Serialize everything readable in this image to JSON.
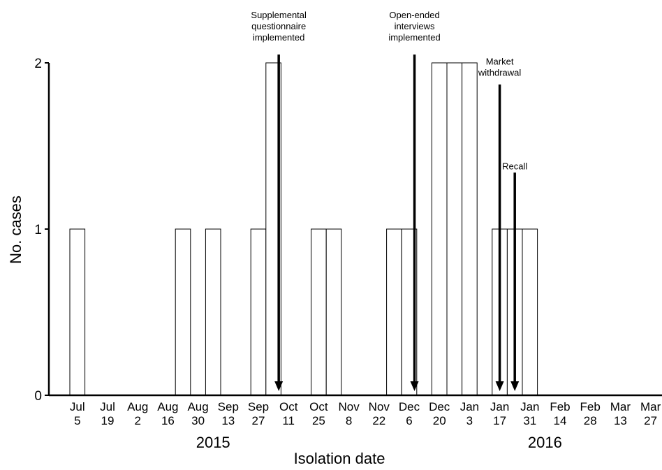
{
  "chart_data": {
    "type": "bar",
    "ylabel": "No. cases",
    "xlabel": "Isolation date",
    "ylim": [
      0,
      2
    ],
    "yticks": [
      0,
      1,
      2
    ],
    "x_ticks": [
      {
        "line1": "Jul",
        "line2": "5"
      },
      {
        "line1": "Jul",
        "line2": "19"
      },
      {
        "line1": "Aug",
        "line2": "2"
      },
      {
        "line1": "Aug",
        "line2": "16"
      },
      {
        "line1": "Aug",
        "line2": "30"
      },
      {
        "line1": "Sep",
        "line2": "13"
      },
      {
        "line1": "Sep",
        "line2": "27"
      },
      {
        "line1": "Oct",
        "line2": "11"
      },
      {
        "line1": "Oct",
        "line2": "25"
      },
      {
        "line1": "Nov",
        "line2": "8"
      },
      {
        "line1": "Nov",
        "line2": "22"
      },
      {
        "line1": "Dec",
        "line2": "6"
      },
      {
        "line1": "Dec",
        "line2": "20"
      },
      {
        "line1": "Jan",
        "line2": "3"
      },
      {
        "line1": "Jan",
        "line2": "17"
      },
      {
        "line1": "Jan",
        "line2": "31"
      },
      {
        "line1": "Feb",
        "line2": "14"
      },
      {
        "line1": "Feb",
        "line2": "28"
      },
      {
        "line1": "Mar",
        "line2": "13"
      },
      {
        "line1": "Mar",
        "line2": "27"
      }
    ],
    "year_labels": [
      {
        "label": "2015",
        "at_week": 9.5
      },
      {
        "label": "2016",
        "at_week": 31.5
      }
    ],
    "bars": [
      {
        "week": 0,
        "value": 1
      },
      {
        "week": 7,
        "value": 1
      },
      {
        "week": 9,
        "value": 1
      },
      {
        "week": 12,
        "value": 1
      },
      {
        "week": 13,
        "value": 2
      },
      {
        "week": 16,
        "value": 1
      },
      {
        "week": 17,
        "value": 1
      },
      {
        "week": 21,
        "value": 1
      },
      {
        "week": 22,
        "value": 1
      },
      {
        "week": 24,
        "value": 2
      },
      {
        "week": 25,
        "value": 2
      },
      {
        "week": 26,
        "value": 2
      },
      {
        "week": 28,
        "value": 1
      },
      {
        "week": 29,
        "value": 1
      },
      {
        "week": 30,
        "value": 1
      }
    ],
    "annotations": [
      {
        "lines": [
          "Supplemental",
          "questionnaire",
          "implemented"
        ],
        "week": 13.85,
        "top_value": 2.05,
        "label_top_value": 2.32
      },
      {
        "lines": [
          "Open-ended",
          "interviews",
          "implemented"
        ],
        "week": 22.85,
        "top_value": 2.05,
        "label_top_value": 2.32
      },
      {
        "lines": [
          "Market",
          "withdrawal"
        ],
        "week": 28.5,
        "top_value": 1.87,
        "label_top_value": 2.04
      },
      {
        "lines": [
          "Recall"
        ],
        "week": 29.5,
        "top_value": 1.34,
        "label_top_value": 1.41
      }
    ]
  }
}
